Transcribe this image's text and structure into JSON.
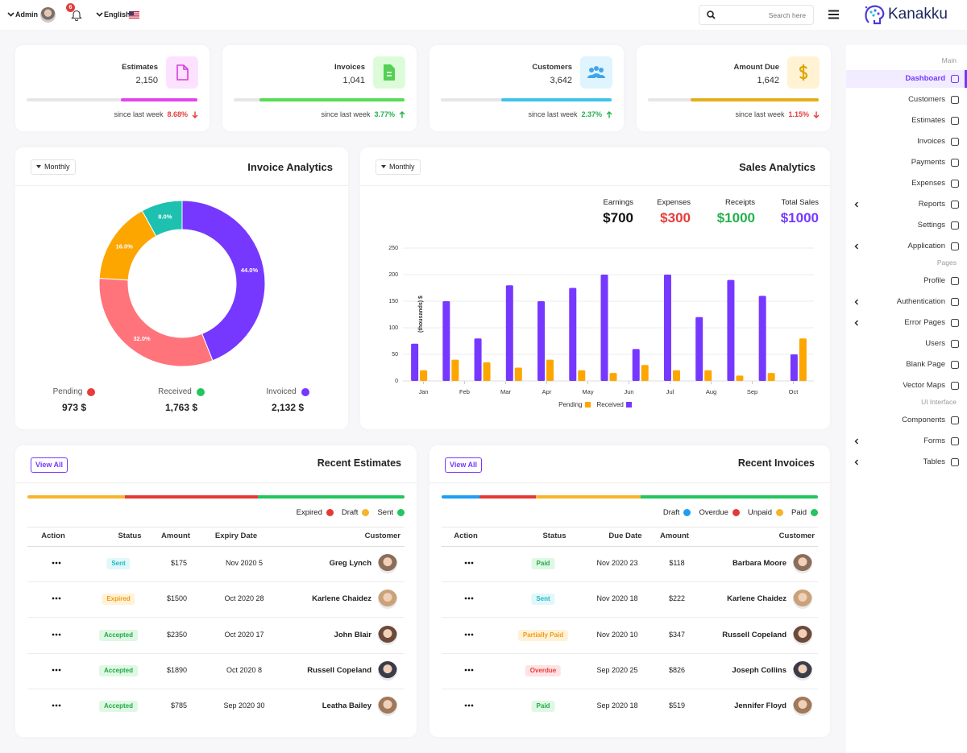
{
  "topbar": {
    "user": "Admin",
    "notifications": "6",
    "language": "English",
    "search_placeholder": "Search here",
    "brand": "Kanakku"
  },
  "stats": [
    {
      "title": "Estimates",
      "value": "2,150",
      "caption": "since last week",
      "change": "8.68%"
    },
    {
      "title": "Invoices",
      "value": "1,041",
      "caption": "since last week",
      "change": "3.77%"
    },
    {
      "title": "Customers",
      "value": "3,642",
      "caption": "since last week",
      "change": "2.37%"
    },
    {
      "title": "Amount Due",
      "value": "1,642",
      "caption": "since last week",
      "change": "1.15%"
    }
  ],
  "invoice_analytics": {
    "filter": "Monthly",
    "title": "Invoice Analytics",
    "legend": [
      {
        "label": "Pending",
        "amount": "973 $"
      },
      {
        "label": "Received",
        "amount": "1,763 $"
      },
      {
        "label": "Invoiced",
        "amount": "2,132 $"
      }
    ]
  },
  "sales_analytics": {
    "filter": "Monthly",
    "title": "Sales Analytics",
    "summary": [
      {
        "label": "Earnings",
        "value": "$700"
      },
      {
        "label": "Expenses",
        "value": "$300"
      },
      {
        "label": "Receipts",
        "value": "$1000"
      },
      {
        "label": "Total Sales",
        "value": "$1000"
      }
    ]
  },
  "chart_data": [
    {
      "type": "pie",
      "values": [
        44,
        32,
        16,
        8
      ],
      "value_labels": [
        "44.0%",
        "32.0%",
        "16.0%",
        "8.0%"
      ],
      "colors": [
        "#7638ff",
        "#ff737b",
        "#fda600",
        "#1ec1b0"
      ]
    },
    {
      "type": "bar",
      "y_label": "(thousands) $",
      "x": [
        1,
        2,
        3,
        4,
        5,
        6,
        7,
        8,
        9,
        10,
        11,
        12,
        13
      ],
      "xlim": [
        0.5,
        13.5
      ],
      "xticks": [
        {
          "value": 1.15,
          "label": "Jan"
        },
        {
          "value": 2.45,
          "label": "Feb"
        },
        {
          "value": 3.75,
          "label": "Mar"
        },
        {
          "value": 5.05,
          "label": "Apr"
        },
        {
          "value": 6.35,
          "label": "May"
        },
        {
          "value": 7.65,
          "label": "Jun"
        },
        {
          "value": 8.95,
          "label": "Jul"
        },
        {
          "value": 10.25,
          "label": "Aug"
        },
        {
          "value": 11.55,
          "label": "Sep"
        },
        {
          "value": 12.85,
          "label": "Oct"
        }
      ],
      "ylim": [
        0,
        250
      ],
      "yticks": [
        0,
        50,
        100,
        150,
        200,
        250
      ],
      "grid": true,
      "legend": "bottom",
      "series": [
        {
          "name": "Pending",
          "color": "#fda600",
          "values": [
            20,
            40,
            35,
            25,
            40,
            20,
            15,
            30,
            20,
            20,
            10,
            15,
            80
          ]
        },
        {
          "name": "Received",
          "color": "#7638ff",
          "values": [
            70,
            150,
            80,
            180,
            150,
            175,
            200,
            60,
            200,
            120,
            190,
            160,
            50
          ]
        }
      ]
    }
  ],
  "recent_estimates": {
    "button": "View All",
    "title": "Recent Estimates",
    "legend": [
      "Expired",
      "Draft",
      "Sent"
    ],
    "headers": [
      "Action",
      "Status",
      "Amount",
      "Expiry Date",
      "Customer"
    ],
    "rows": [
      [
        "Sent",
        "$175",
        "Nov 2020 5",
        "Greg Lynch"
      ],
      [
        "Expired",
        "$1500",
        "Oct 2020 28",
        "Karlene Chaidez"
      ],
      [
        "Accepted",
        "$2350",
        "Oct 2020 17",
        "John Blair"
      ],
      [
        "Accepted",
        "$1890",
        "Oct 2020 8",
        "Russell Copeland"
      ],
      [
        "Accepted",
        "$785",
        "Sep 2020 30",
        "Leatha Bailey"
      ]
    ]
  },
  "recent_invoices": {
    "button": "View All",
    "title": "Recent Invoices",
    "legend": [
      "Draft",
      "Overdue",
      "Unpaid",
      "Paid"
    ],
    "headers": [
      "Action",
      "Status",
      "Due Date",
      "Amount",
      "Customer"
    ],
    "rows": [
      [
        "Paid",
        "Nov 2020 23",
        "$118",
        "Barbara Moore"
      ],
      [
        "Sent",
        "Nov 2020 18",
        "$222",
        "Karlene Chaidez"
      ],
      [
        "Partially Paid",
        "Nov 2020 10",
        "$347",
        "Russell Copeland"
      ],
      [
        "Overdue",
        "Sep 2020 25",
        "$826",
        "Joseph Collins"
      ],
      [
        "Paid",
        "Sep 2020 18",
        "$519",
        "Jennifer Floyd"
      ]
    ]
  },
  "sidebar": {
    "sections": [
      {
        "title": "Main",
        "items": [
          "Dashboard",
          "Customers",
          "Estimates",
          "Invoices",
          "Payments",
          "Expenses",
          "Reports",
          "Settings",
          "Application"
        ]
      },
      {
        "title": "Pages",
        "items": [
          "Profile",
          "Authentication",
          "Error Pages",
          "Users",
          "Blank Page",
          "Vector Maps"
        ]
      },
      {
        "title": "UI Interface",
        "items": [
          "Components",
          "Forms",
          "Tables"
        ]
      }
    ]
  }
}
